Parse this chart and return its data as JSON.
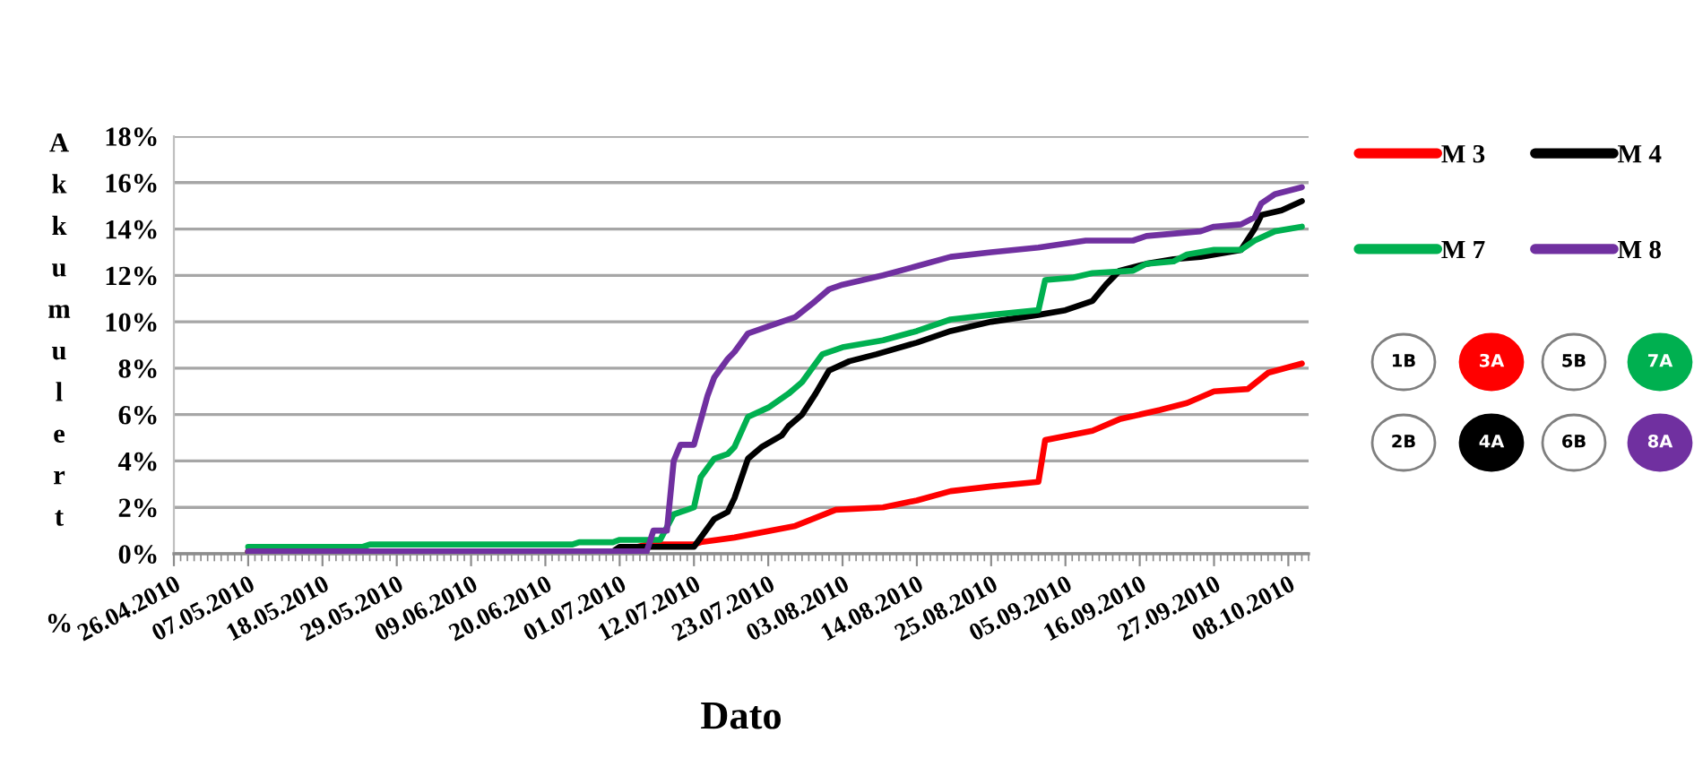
{
  "chart_data": {
    "type": "line",
    "xlabel": "Dato",
    "ylabel": "Akkumulert %",
    "xlim": [
      "2010-04-26",
      "2010-10-11"
    ],
    "xticks": [
      {
        "value": "2010-04-26",
        "label": "26.04.2010"
      },
      {
        "value": "2010-05-07",
        "label": "07.05.2010"
      },
      {
        "value": "2010-05-18",
        "label": "18.05.2010"
      },
      {
        "value": "2010-05-29",
        "label": "29.05.2010"
      },
      {
        "value": "2010-06-09",
        "label": "09.06.2010"
      },
      {
        "value": "2010-06-20",
        "label": "20.06.2010"
      },
      {
        "value": "2010-07-01",
        "label": "01.07.2010"
      },
      {
        "value": "2010-07-12",
        "label": "12.07.2010"
      },
      {
        "value": "2010-07-23",
        "label": "23.07.2010"
      },
      {
        "value": "2010-08-03",
        "label": "03.08.2010"
      },
      {
        "value": "2010-08-14",
        "label": "14.08.2010"
      },
      {
        "value": "2010-08-25",
        "label": "25.08.2010"
      },
      {
        "value": "2010-09-05",
        "label": "05.09.2010"
      },
      {
        "value": "2010-09-16",
        "label": "16.09.2010"
      },
      {
        "value": "2010-09-27",
        "label": "27.09.2010"
      },
      {
        "value": "2010-10-08",
        "label": "08.10.2010"
      }
    ],
    "ylim": [
      0,
      18
    ],
    "yticks": [
      {
        "value": 0,
        "label": "0%"
      },
      {
        "value": 2,
        "label": "2%"
      },
      {
        "value": 4,
        "label": "4%"
      },
      {
        "value": 6,
        "label": "6%"
      },
      {
        "value": 8,
        "label": "8%"
      },
      {
        "value": 10,
        "label": "10%"
      },
      {
        "value": 12,
        "label": "12%"
      },
      {
        "value": 14,
        "label": "14%"
      },
      {
        "value": 16,
        "label": "16%"
      },
      {
        "value": 18,
        "label": "18%"
      }
    ],
    "grid": "y",
    "legend": "right",
    "series": [
      {
        "name": "M 3",
        "color": "#ff0000",
        "x": [
          "2010-05-07",
          "2010-07-01",
          "2010-07-05",
          "2010-07-12",
          "2010-07-13",
          "2010-07-18",
          "2010-07-27",
          "2010-08-02",
          "2010-08-09",
          "2010-08-14",
          "2010-08-19",
          "2010-08-25",
          "2010-09-01",
          "2010-09-02",
          "2010-09-09",
          "2010-09-13",
          "2010-09-19",
          "2010-09-23",
          "2010-09-27",
          "2010-10-02",
          "2010-10-05",
          "2010-10-10"
        ],
        "values": [
          0.1,
          0.1,
          0.4,
          0.4,
          0.5,
          0.7,
          1.2,
          1.9,
          2.0,
          2.3,
          2.7,
          2.9,
          3.1,
          4.9,
          5.3,
          5.8,
          6.2,
          6.5,
          7.0,
          7.1,
          7.8,
          8.2
        ]
      },
      {
        "name": "M 4",
        "color": "#000000",
        "x": [
          "2010-05-07",
          "2010-06-30",
          "2010-07-01",
          "2010-07-12",
          "2010-07-15",
          "2010-07-17",
          "2010-07-18",
          "2010-07-20",
          "2010-07-22",
          "2010-07-25",
          "2010-07-26",
          "2010-07-28",
          "2010-07-30",
          "2010-08-01",
          "2010-08-04",
          "2010-08-08",
          "2010-08-14",
          "2010-08-19",
          "2010-08-25",
          "2010-09-01",
          "2010-09-05",
          "2010-09-09",
          "2010-09-11",
          "2010-09-13",
          "2010-09-17",
          "2010-09-21",
          "2010-09-25",
          "2010-10-01",
          "2010-10-03",
          "2010-10-04",
          "2010-10-07",
          "2010-10-10"
        ],
        "values": [
          0.1,
          0.1,
          0.3,
          0.3,
          1.5,
          1.8,
          2.4,
          4.1,
          4.6,
          5.1,
          5.5,
          6.0,
          6.9,
          7.9,
          8.3,
          8.6,
          9.1,
          9.6,
          10.0,
          10.3,
          10.5,
          10.9,
          11.6,
          12.2,
          12.5,
          12.7,
          12.8,
          13.1,
          14.0,
          14.6,
          14.8,
          15.2
        ]
      },
      {
        "name": "M 7",
        "color": "#00b050",
        "x": [
          "2010-05-07",
          "2010-05-24",
          "2010-05-25",
          "2010-06-24",
          "2010-06-25",
          "2010-06-30",
          "2010-07-01",
          "2010-07-07",
          "2010-07-09",
          "2010-07-11",
          "2010-07-12",
          "2010-07-13",
          "2010-07-15",
          "2010-07-17",
          "2010-07-18",
          "2010-07-20",
          "2010-07-23",
          "2010-07-26",
          "2010-07-28",
          "2010-07-31",
          "2010-08-03",
          "2010-08-09",
          "2010-08-14",
          "2010-08-19",
          "2010-08-25",
          "2010-09-01",
          "2010-09-02",
          "2010-09-06",
          "2010-09-09",
          "2010-09-15",
          "2010-09-17",
          "2010-09-21",
          "2010-09-23",
          "2010-09-27",
          "2010-10-01",
          "2010-10-03",
          "2010-10-06",
          "2010-10-10"
        ],
        "values": [
          0.3,
          0.3,
          0.4,
          0.4,
          0.5,
          0.5,
          0.6,
          0.6,
          1.7,
          1.9,
          2.0,
          3.3,
          4.1,
          4.3,
          4.6,
          5.9,
          6.3,
          6.9,
          7.4,
          8.6,
          8.9,
          9.2,
          9.6,
          10.1,
          10.3,
          10.5,
          11.8,
          11.9,
          12.1,
          12.2,
          12.5,
          12.6,
          12.9,
          13.1,
          13.1,
          13.5,
          13.9,
          14.1
        ]
      },
      {
        "name": "M 8",
        "color": "#7030a0",
        "x": [
          "2010-05-07",
          "2010-07-05",
          "2010-07-06",
          "2010-07-08",
          "2010-07-09",
          "2010-07-10",
          "2010-07-12",
          "2010-07-14",
          "2010-07-15",
          "2010-07-17",
          "2010-07-18",
          "2010-07-20",
          "2010-07-24",
          "2010-07-27",
          "2010-07-30",
          "2010-08-01",
          "2010-08-03",
          "2010-08-09",
          "2010-08-14",
          "2010-08-19",
          "2010-08-25",
          "2010-09-01",
          "2010-09-08",
          "2010-09-15",
          "2010-09-17",
          "2010-09-25",
          "2010-09-27",
          "2010-10-01",
          "2010-10-03",
          "2010-10-04",
          "2010-10-06",
          "2010-10-10"
        ],
        "values": [
          0.1,
          0.1,
          1.0,
          1.0,
          4.0,
          4.7,
          4.7,
          6.8,
          7.6,
          8.4,
          8.7,
          9.5,
          9.9,
          10.2,
          10.9,
          11.4,
          11.6,
          12.0,
          12.4,
          12.8,
          13.0,
          13.2,
          13.5,
          13.5,
          13.7,
          13.9,
          14.1,
          14.2,
          14.5,
          15.1,
          15.5,
          15.8
        ]
      }
    ],
    "annotations": [
      "1B",
      "3A",
      "5B",
      "7A",
      "2B",
      "4A",
      "6B",
      "8A"
    ]
  }
}
